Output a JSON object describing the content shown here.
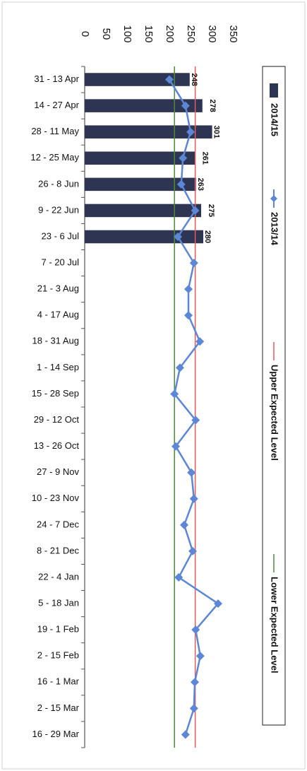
{
  "chart_data": {
    "type": "bar",
    "orientation": "horizontal",
    "categories": [
      "31 - 13 Apr",
      "14 - 27 Apr",
      "28 - 11 May",
      "12 - 25 May",
      "26 - 8 Jun",
      "9 - 22 Jun",
      "23 - 6 Jul",
      "7 - 20 Jul",
      "21 - 3 Aug",
      "4 - 17 Aug",
      "18 - 31 Aug",
      "1 - 14 Sep",
      "15 - 28 Sep",
      "29 - 12 Oct",
      "13 - 26 Oct",
      "27 - 9 Nov",
      "10 - 23 Nov",
      "24 - 7 Dec",
      "8 - 21 Dec",
      "22 - 4 Jan",
      "5 - 18 Jan",
      "19 - 1 Feb",
      "2 - 15 Feb",
      "16 - 1 Mar",
      "2 - 15 Mar",
      "16 - 29 Mar"
    ],
    "series": [
      {
        "name": "2014/15",
        "type": "bar",
        "color": "#2e3552",
        "values": [
          248,
          278,
          301,
          261,
          263,
          275,
          280,
          null,
          null,
          null,
          null,
          null,
          null,
          null,
          null,
          null,
          null,
          null,
          null,
          null,
          null,
          null,
          null,
          null,
          null,
          null
        ],
        "labels": [
          "248",
          "278",
          "301",
          "261",
          "263",
          "275",
          "280"
        ]
      },
      {
        "name": "2013/14",
        "type": "line",
        "color": "#5b87d6",
        "marker": "diamond",
        "values": [
          200,
          238,
          250,
          232,
          228,
          261,
          220,
          258,
          245,
          245,
          272,
          225,
          212,
          262,
          215,
          252,
          258,
          235,
          255,
          222,
          315,
          262,
          273,
          260,
          258,
          238
        ]
      },
      {
        "name": "Upper Expected Level",
        "type": "line",
        "color": "#e35a5a",
        "values": [
          261,
          261,
          261,
          261,
          261,
          261,
          261,
          261,
          261,
          261,
          261,
          261,
          261,
          261,
          261,
          261,
          261,
          261,
          261,
          261,
          261,
          261,
          261,
          261,
          261,
          261
        ]
      },
      {
        "name": "Lower Expected Level",
        "type": "line",
        "color": "#4b8a3a",
        "values": [
          212,
          212,
          212,
          212,
          212,
          212,
          212,
          212,
          212,
          212,
          212,
          212,
          212,
          212,
          212,
          212,
          212,
          212,
          212,
          212,
          212,
          212,
          212,
          212,
          212,
          212
        ]
      }
    ],
    "value_axis": {
      "min": 0,
      "max": 350,
      "ticks": [
        "0",
        "50",
        "100",
        "150",
        "200",
        "250",
        "300",
        "350"
      ]
    },
    "legend_position": "right",
    "grid": false
  }
}
